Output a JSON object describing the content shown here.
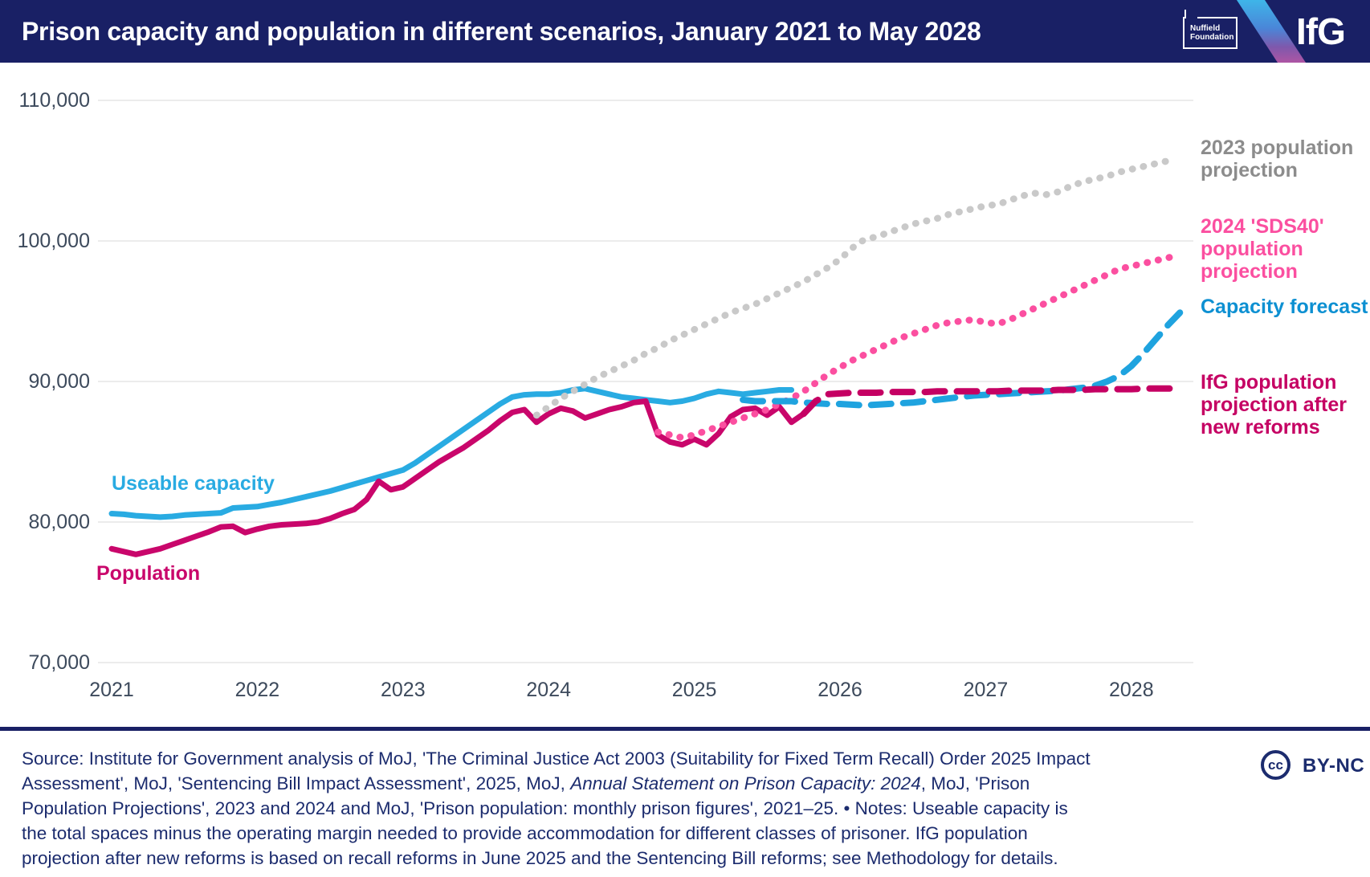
{
  "header": {
    "title": "Prison capacity and population in different scenarios, January 2021 to May 2028",
    "nuffield_logo": {
      "line1": "Nuffield",
      "line2": "Foundation"
    },
    "ifg_logo": "IfG",
    "bar_color": "#192065",
    "stripe_gradient": [
      "#3EB5E9",
      "#4A86D8",
      "#7E58AC",
      "#AE55A4"
    ]
  },
  "chart_data": {
    "type": "line",
    "title": "Prison capacity and population in different scenarios, January 2021 to May 2028",
    "x_axis": {
      "tick_labels": [
        "2021",
        "2022",
        "2023",
        "2024",
        "2025",
        "2026",
        "2027",
        "2028"
      ],
      "start": "2021-01",
      "end": "2028-05",
      "unit": "months"
    },
    "y_axis": {
      "tick_values": [
        110000,
        100000,
        90000,
        80000,
        70000
      ],
      "tick_labels": [
        "110,000",
        "100,000",
        "90,000",
        "80,000",
        "70,000"
      ],
      "min": 70000,
      "max": 110000,
      "grid": true
    },
    "series": [
      {
        "name": "Useable capacity",
        "line_style": "solid",
        "color": "#29ABE2",
        "start_month": "2021-01",
        "start_index": 0,
        "values": [
          80600,
          80550,
          80450,
          80400,
          80350,
          80400,
          80500,
          80550,
          80600,
          80650,
          81000,
          81050,
          81100,
          81250,
          81400,
          81600,
          81800,
          82000,
          82200,
          82450,
          82700,
          82950,
          83200,
          83450,
          83700,
          84200,
          84800,
          85400,
          86000,
          86600,
          87200,
          87800,
          88400,
          88900,
          89050,
          89100,
          89100,
          89200,
          89400,
          89500,
          89300,
          89100,
          88900,
          88800,
          88700,
          88600,
          88500,
          88600,
          88800,
          89100,
          89300,
          89200,
          89100,
          89200,
          89300,
          89400,
          89400
        ]
      },
      {
        "name": "Population",
        "line_style": "solid",
        "color": "#C9066B",
        "start_month": "2021-01",
        "start_index": 0,
        "values": [
          78100,
          77900,
          77700,
          77900,
          78100,
          78400,
          78700,
          79000,
          79300,
          79650,
          79700,
          79250,
          79500,
          79700,
          79800,
          79850,
          79900,
          80000,
          80250,
          80600,
          80900,
          81600,
          82900,
          82300,
          82500,
          83100,
          83700,
          84300,
          84800,
          85300,
          85900,
          86500,
          87200,
          87800,
          88000,
          87100,
          87700,
          88100,
          87900,
          87400,
          87700,
          88000,
          88200,
          88500,
          88600,
          86200,
          85700,
          85500,
          85900,
          85500,
          86300,
          87500,
          88000,
          88100,
          87600,
          88200,
          87100,
          87700
        ]
      },
      {
        "name": "2023 population projection",
        "line_style": "dotted",
        "color": "#C9C9C9",
        "start_month": "2023-12",
        "start_index": 35,
        "values": [
          87600,
          88200,
          88800,
          89300,
          89800,
          90300,
          90700,
          91100,
          91500,
          92000,
          92400,
          92900,
          93300,
          93700,
          94100,
          94500,
          94900,
          95200,
          95500,
          95900,
          96300,
          96700,
          97100,
          97600,
          98100,
          98700,
          99500,
          100100,
          100300,
          100600,
          100900,
          101200,
          101400,
          101600,
          101900,
          102100,
          102300,
          102500,
          102600,
          102900,
          103200,
          103400,
          103300,
          103500,
          103900,
          104200,
          104400,
          104600,
          104900,
          105100,
          105300,
          105500,
          105700
        ]
      },
      {
        "name": "2024 'SDS40' population projection",
        "line_style": "dotted",
        "color": "#FB4FA0",
        "start_month": "2024-10",
        "start_index": 45,
        "values": [
          86400,
          86200,
          86000,
          86200,
          86500,
          86800,
          87100,
          87400,
          87700,
          88000,
          88400,
          88800,
          89300,
          89900,
          90500,
          91000,
          91500,
          91900,
          92300,
          92700,
          93100,
          93400,
          93700,
          94000,
          94200,
          94300,
          94400,
          94200,
          94100,
          94400,
          94800,
          95200,
          95600,
          96000,
          96400,
          96800,
          97200,
          97600,
          98000,
          98200,
          98400,
          98600,
          98800,
          99000
        ]
      },
      {
        "name": "Capacity forecast",
        "line_style": "dashed",
        "color": "#1FA3DF",
        "start_month": "2025-05",
        "start_index": 52,
        "values": [
          88700,
          88600,
          88600,
          88600,
          88600,
          88500,
          88450,
          88400,
          88400,
          88350,
          88300,
          88350,
          88400,
          88450,
          88500,
          88600,
          88700,
          88800,
          88900,
          89000,
          89050,
          89100,
          89150,
          89200,
          89250,
          89300,
          89350,
          89450,
          89550,
          89700,
          90000,
          90400,
          91100,
          92000,
          93000,
          94000,
          94900
        ]
      },
      {
        "name": "IfG population projection after new reforms",
        "line_style": "dashed",
        "color": "#C50063",
        "start_month": "2025-10",
        "start_index": 57,
        "values": [
          87700,
          88600,
          89100,
          89150,
          89200,
          89200,
          89200,
          89250,
          89250,
          89250,
          89250,
          89300,
          89300,
          89300,
          89300,
          89300,
          89300,
          89350,
          89350,
          89350,
          89350,
          89400,
          89400,
          89400,
          89450,
          89450,
          89450,
          89450,
          89500,
          89500,
          89500,
          89500
        ]
      }
    ],
    "annotations": {
      "useable_capacity_label": {
        "text": "Useable capacity",
        "color": "#29ABE2"
      },
      "population_label": {
        "text": "Population",
        "color": "#C9066B"
      },
      "proj2023_label": {
        "text": "2023 population projection",
        "color": "#8C8C8C"
      },
      "sds40_label": {
        "text": "2024 'SDS40' population projection",
        "color": "#FB4FA0"
      },
      "forecast_label": {
        "text": "Capacity forecast",
        "color": "#0D90D2"
      },
      "ifg_label": {
        "text": "IfG population projection after new reforms",
        "color": "#C50063"
      }
    },
    "legend_position": "right",
    "gridline_color": "#ECECEC",
    "axis_label_color": "#3D4A5C"
  },
  "footer": {
    "lines": [
      [
        {
          "t": "Source: Institute for Government analysis of MoJ, 'The Criminal Justice Act 2003 (Suitability for Fixed Term Recall) Order 2025 Impact",
          "i": false
        }
      ],
      [
        {
          "t": "Assessment', MoJ, 'Sentencing Bill Impact Assessment', 2025, MoJ, ",
          "i": false
        },
        {
          "t": "Annual Statement on Prison Capacity: 2024",
          "i": true
        },
        {
          "t": ", MoJ, 'Prison",
          "i": false
        }
      ],
      [
        {
          "t": "Population Projections', 2023 and 2024 and MoJ, 'Prison population: monthly prison figures', 2021–25. • Notes: Useable capacity is",
          "i": false
        }
      ],
      [
        {
          "t": "the total spaces minus the operating margin needed to provide accommodation for different classes of prisoner. IfG population",
          "i": false
        }
      ],
      [
        {
          "t": "projection after new reforms is based on recall reforms in June 2025 and the Sentencing Bill reforms; see Methodology for details.",
          "i": false
        }
      ]
    ],
    "license": {
      "cc": "cc",
      "label": "BY-NC"
    }
  }
}
